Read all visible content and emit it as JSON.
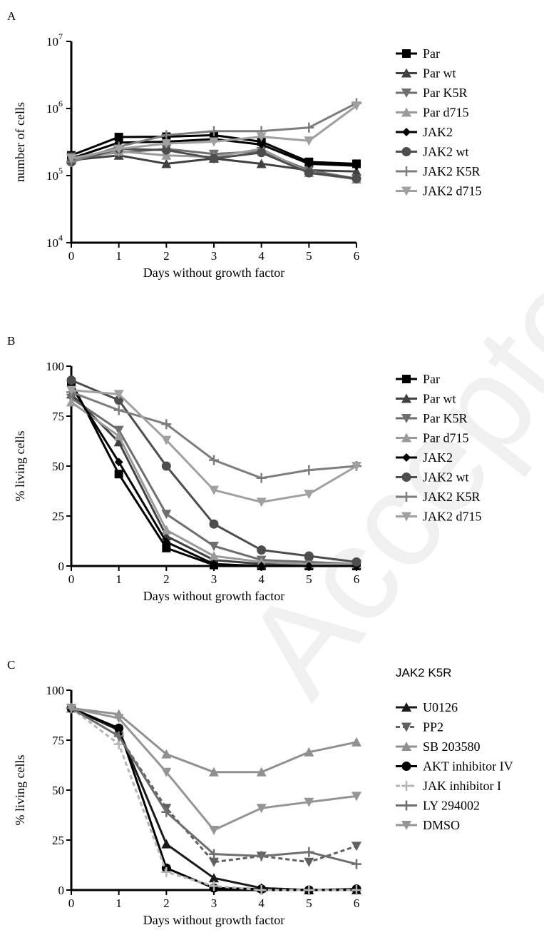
{
  "watermark": "Accepted Manuscript",
  "chart_data": [
    {
      "panel": "A",
      "type": "line",
      "ylabel": "number of cells",
      "xlabel": "Days without growth factor",
      "yscale": "log",
      "ylim": [
        10000,
        10000000
      ],
      "yticks": [
        10000,
        100000,
        1000000,
        10000000
      ],
      "ytick_labels": [
        {
          "base": "10",
          "exp": "4"
        },
        {
          "base": "10",
          "exp": "5"
        },
        {
          "base": "10",
          "exp": "6"
        },
        {
          "base": "10",
          "exp": "7"
        }
      ],
      "xlim": [
        0,
        6
      ],
      "xticks": [
        0,
        1,
        2,
        3,
        4,
        5,
        6
      ],
      "xtick_labels": [
        "0",
        "1",
        "2",
        "3",
        "4",
        "5",
        "6"
      ],
      "legend_position": "right",
      "x": [
        0,
        1,
        2,
        3,
        4,
        5,
        6
      ],
      "series": [
        {
          "name": "Par",
          "color": "#000000",
          "marker": "square",
          "dash": false,
          "values": [
            200000,
            375000,
            380000,
            400000,
            320000,
            160000,
            150000
          ]
        },
        {
          "name": "Par wt",
          "color": "#404040",
          "marker": "triangle-up",
          "dash": false,
          "values": [
            170000,
            200000,
            150000,
            180000,
            150000,
            120000,
            115000
          ]
        },
        {
          "name": "Par K5R",
          "color": "#6e6e6e",
          "marker": "triangle-down",
          "dash": false,
          "values": [
            190000,
            220000,
            250000,
            210000,
            230000,
            120000,
            90000
          ]
        },
        {
          "name": "Par d715",
          "color": "#9a9a9a",
          "marker": "triangle-up",
          "dash": false,
          "values": [
            170000,
            230000,
            200000,
            190000,
            250000,
            110000,
            88000
          ]
        },
        {
          "name": "JAK2",
          "color": "#000000",
          "marker": "diamond",
          "dash": false,
          "values": [
            180000,
            310000,
            320000,
            350000,
            290000,
            150000,
            140000
          ]
        },
        {
          "name": "JAK2 wt",
          "color": "#4d4d4d",
          "marker": "circle",
          "dash": false,
          "values": [
            160000,
            250000,
            240000,
            180000,
            220000,
            110000,
            90000
          ]
        },
        {
          "name": "JAK2 K5R",
          "color": "#7d7d7d",
          "marker": "plus",
          "dash": false,
          "values": [
            160000,
            270000,
            400000,
            460000,
            460000,
            520000,
            1200000
          ]
        },
        {
          "name": "JAK2 d715",
          "color": "#a0a0a0",
          "marker": "triangle-down",
          "dash": false,
          "values": [
            180000,
            250000,
            300000,
            320000,
            380000,
            330000,
            1100000
          ]
        }
      ]
    },
    {
      "panel": "B",
      "type": "line",
      "ylabel": "% living cells",
      "xlabel": "Days without growth factor",
      "yscale": "linear",
      "ylim": [
        0,
        100
      ],
      "yticks": [
        0,
        25,
        50,
        75,
        100
      ],
      "ytick_labels": [
        "0",
        "25",
        "50",
        "75",
        "100"
      ],
      "xlim": [
        0,
        6
      ],
      "xticks": [
        0,
        1,
        2,
        3,
        4,
        5,
        6
      ],
      "xtick_labels": [
        "0",
        "1",
        "2",
        "3",
        "4",
        "5",
        "6"
      ],
      "legend_position": "right",
      "x": [
        0,
        1,
        2,
        3,
        4,
        5,
        6
      ],
      "series": [
        {
          "name": "Par",
          "color": "#000000",
          "marker": "square",
          "dash": false,
          "values": [
            92,
            46,
            9,
            0.5,
            0,
            0,
            0
          ]
        },
        {
          "name": "Par wt",
          "color": "#404040",
          "marker": "triangle-up",
          "dash": false,
          "values": [
            86,
            62,
            15,
            3,
            1,
            1,
            1
          ]
        },
        {
          "name": "Par K5R",
          "color": "#6e6e6e",
          "marker": "triangle-down",
          "dash": false,
          "values": [
            84,
            68,
            26,
            10,
            3,
            2,
            1
          ]
        },
        {
          "name": "Par d715",
          "color": "#9a9a9a",
          "marker": "triangle-up",
          "dash": false,
          "values": [
            82,
            65,
            18,
            5,
            2,
            1,
            1
          ]
        },
        {
          "name": "JAK2",
          "color": "#000000",
          "marker": "diamond",
          "dash": false,
          "values": [
            90,
            52,
            12,
            1,
            0,
            0,
            0
          ]
        },
        {
          "name": "JAK2 wt",
          "color": "#4d4d4d",
          "marker": "circle",
          "dash": false,
          "values": [
            93,
            83,
            50,
            21,
            8,
            5,
            2
          ]
        },
        {
          "name": "JAK2 K5R",
          "color": "#7d7d7d",
          "marker": "plus",
          "dash": false,
          "values": [
            87,
            78,
            71,
            53,
            44,
            48,
            50
          ]
        },
        {
          "name": "JAK2 d715",
          "color": "#a0a0a0",
          "marker": "triangle-down",
          "dash": false,
          "values": [
            88,
            86,
            63,
            38,
            32,
            36,
            50
          ]
        }
      ]
    },
    {
      "panel": "C",
      "type": "line",
      "legend_title": "JAK2 K5R",
      "ylabel": "% living cells",
      "xlabel": "Days without growth factor",
      "yscale": "linear",
      "ylim": [
        0,
        100
      ],
      "yticks": [
        0,
        25,
        50,
        75,
        100
      ],
      "ytick_labels": [
        "0",
        "25",
        "50",
        "75",
        "100"
      ],
      "xlim": [
        0,
        6
      ],
      "xticks": [
        0,
        1,
        2,
        3,
        4,
        5,
        6
      ],
      "xtick_labels": [
        "0",
        "1",
        "2",
        "3",
        "4",
        "5",
        "6"
      ],
      "legend_position": "right",
      "x": [
        0,
        1,
        2,
        3,
        4,
        5,
        6
      ],
      "series": [
        {
          "name": "U0126",
          "color": "#1a1a1a",
          "marker": "triangle-up",
          "dash": false,
          "values": [
            91,
            80,
            23,
            6,
            1,
            0,
            0
          ]
        },
        {
          "name": "PP2",
          "color": "#606060",
          "marker": "triangle-down",
          "dash": true,
          "values": [
            91,
            77,
            41,
            14,
            17,
            14,
            22
          ]
        },
        {
          "name": "SB 203580",
          "color": "#909090",
          "marker": "triangle-up",
          "dash": false,
          "values": [
            91,
            88,
            68,
            59,
            59,
            69,
            74
          ]
        },
        {
          "name": "AKT inhibitor IV",
          "color": "#000000",
          "marker": "circle",
          "dash": false,
          "values": [
            91,
            81,
            11,
            1,
            0.5,
            0,
            0.5
          ]
        },
        {
          "name": "JAK inhibitor I",
          "color": "#b4b4b4",
          "marker": "plus",
          "dash": true,
          "values": [
            91,
            73,
            9,
            2,
            0,
            0,
            0
          ]
        },
        {
          "name": "LY 294002",
          "color": "#6e6e6e",
          "marker": "plus",
          "dash": false,
          "values": [
            91,
            77,
            39,
            18,
            17,
            19,
            13
          ]
        },
        {
          "name": "DMSO",
          "color": "#959595",
          "marker": "triangle-down",
          "dash": false,
          "values": [
            91,
            86,
            59,
            30,
            41,
            44,
            47
          ]
        }
      ]
    }
  ]
}
